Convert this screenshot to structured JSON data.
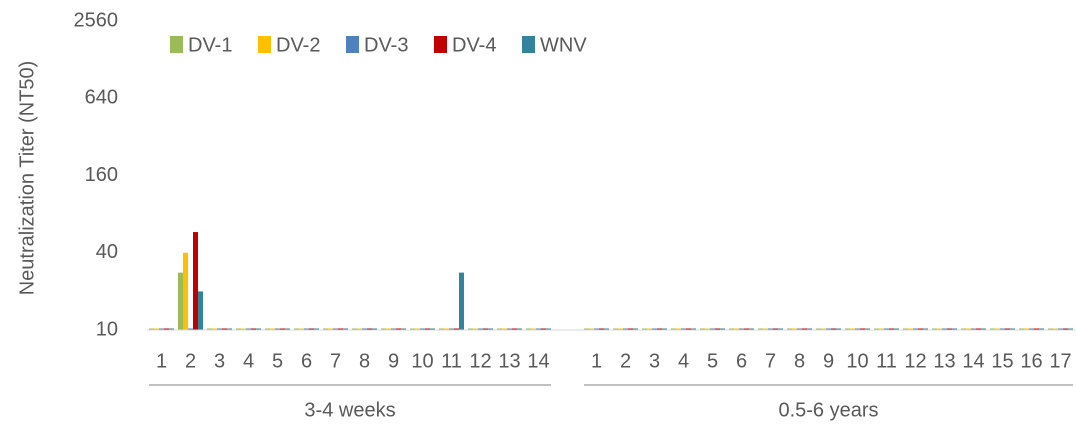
{
  "chart_data": {
    "type": "bar",
    "ylabel": "Neutralization Titer (NT50)",
    "log_scale": true,
    "ylim": [
      10,
      2560
    ],
    "yticks": [
      10,
      40,
      160,
      640,
      2560
    ],
    "legend": "top-left",
    "categories": [
      "1",
      "2",
      "3",
      "4",
      "5",
      "6",
      "7",
      "8",
      "9",
      "10",
      "11",
      "12",
      "13",
      "14",
      null,
      "1",
      "2",
      "3",
      "4",
      "5",
      "6",
      "7",
      "8",
      "9",
      "10",
      "11",
      "12",
      "13",
      "14",
      "15",
      "16",
      "17"
    ],
    "groups": [
      "3-4 weeks",
      "0.5-6 years"
    ],
    "series": [
      {
        "name": "DV-1",
        "color": "#9bbb59",
        "values": [
          10,
          28,
          10,
          10,
          10,
          10,
          10,
          10,
          10,
          10,
          10,
          10,
          10,
          10,
          null,
          10,
          10,
          10,
          10,
          10,
          10,
          10,
          10,
          10,
          10,
          10,
          10,
          10,
          10,
          10,
          10,
          10
        ]
      },
      {
        "name": "DV-2",
        "color": "#ffc000",
        "values": [
          10,
          40,
          10,
          10,
          10,
          10,
          10,
          10,
          10,
          10,
          10,
          10,
          10,
          10,
          null,
          10,
          10,
          10,
          10,
          10,
          10,
          10,
          10,
          10,
          10,
          10,
          10,
          10,
          10,
          10,
          10,
          10
        ]
      },
      {
        "name": "DV-3",
        "color": "#4f81bd",
        "values": [
          10,
          10,
          10,
          10,
          10,
          10,
          10,
          10,
          10,
          10,
          10,
          10,
          10,
          10,
          null,
          10,
          10,
          10,
          10,
          10,
          10,
          10,
          10,
          10,
          10,
          10,
          10,
          10,
          10,
          10,
          10,
          10
        ]
      },
      {
        "name": "DV-4",
        "color": "#c00000",
        "values": [
          10,
          58,
          10,
          10,
          10,
          10,
          10,
          10,
          10,
          10,
          10,
          10,
          10,
          10,
          null,
          10,
          10,
          10,
          10,
          10,
          10,
          10,
          10,
          10,
          10,
          10,
          10,
          10,
          10,
          10,
          10,
          10
        ]
      },
      {
        "name": "WNV",
        "color": "#31849b",
        "values": [
          10,
          20,
          10,
          10,
          10,
          10,
          10,
          10,
          10,
          10,
          28,
          10,
          10,
          10,
          null,
          10,
          10,
          10,
          10,
          10,
          10,
          10,
          10,
          10,
          10,
          10,
          10,
          10,
          10,
          10,
          10,
          10
        ]
      }
    ]
  }
}
